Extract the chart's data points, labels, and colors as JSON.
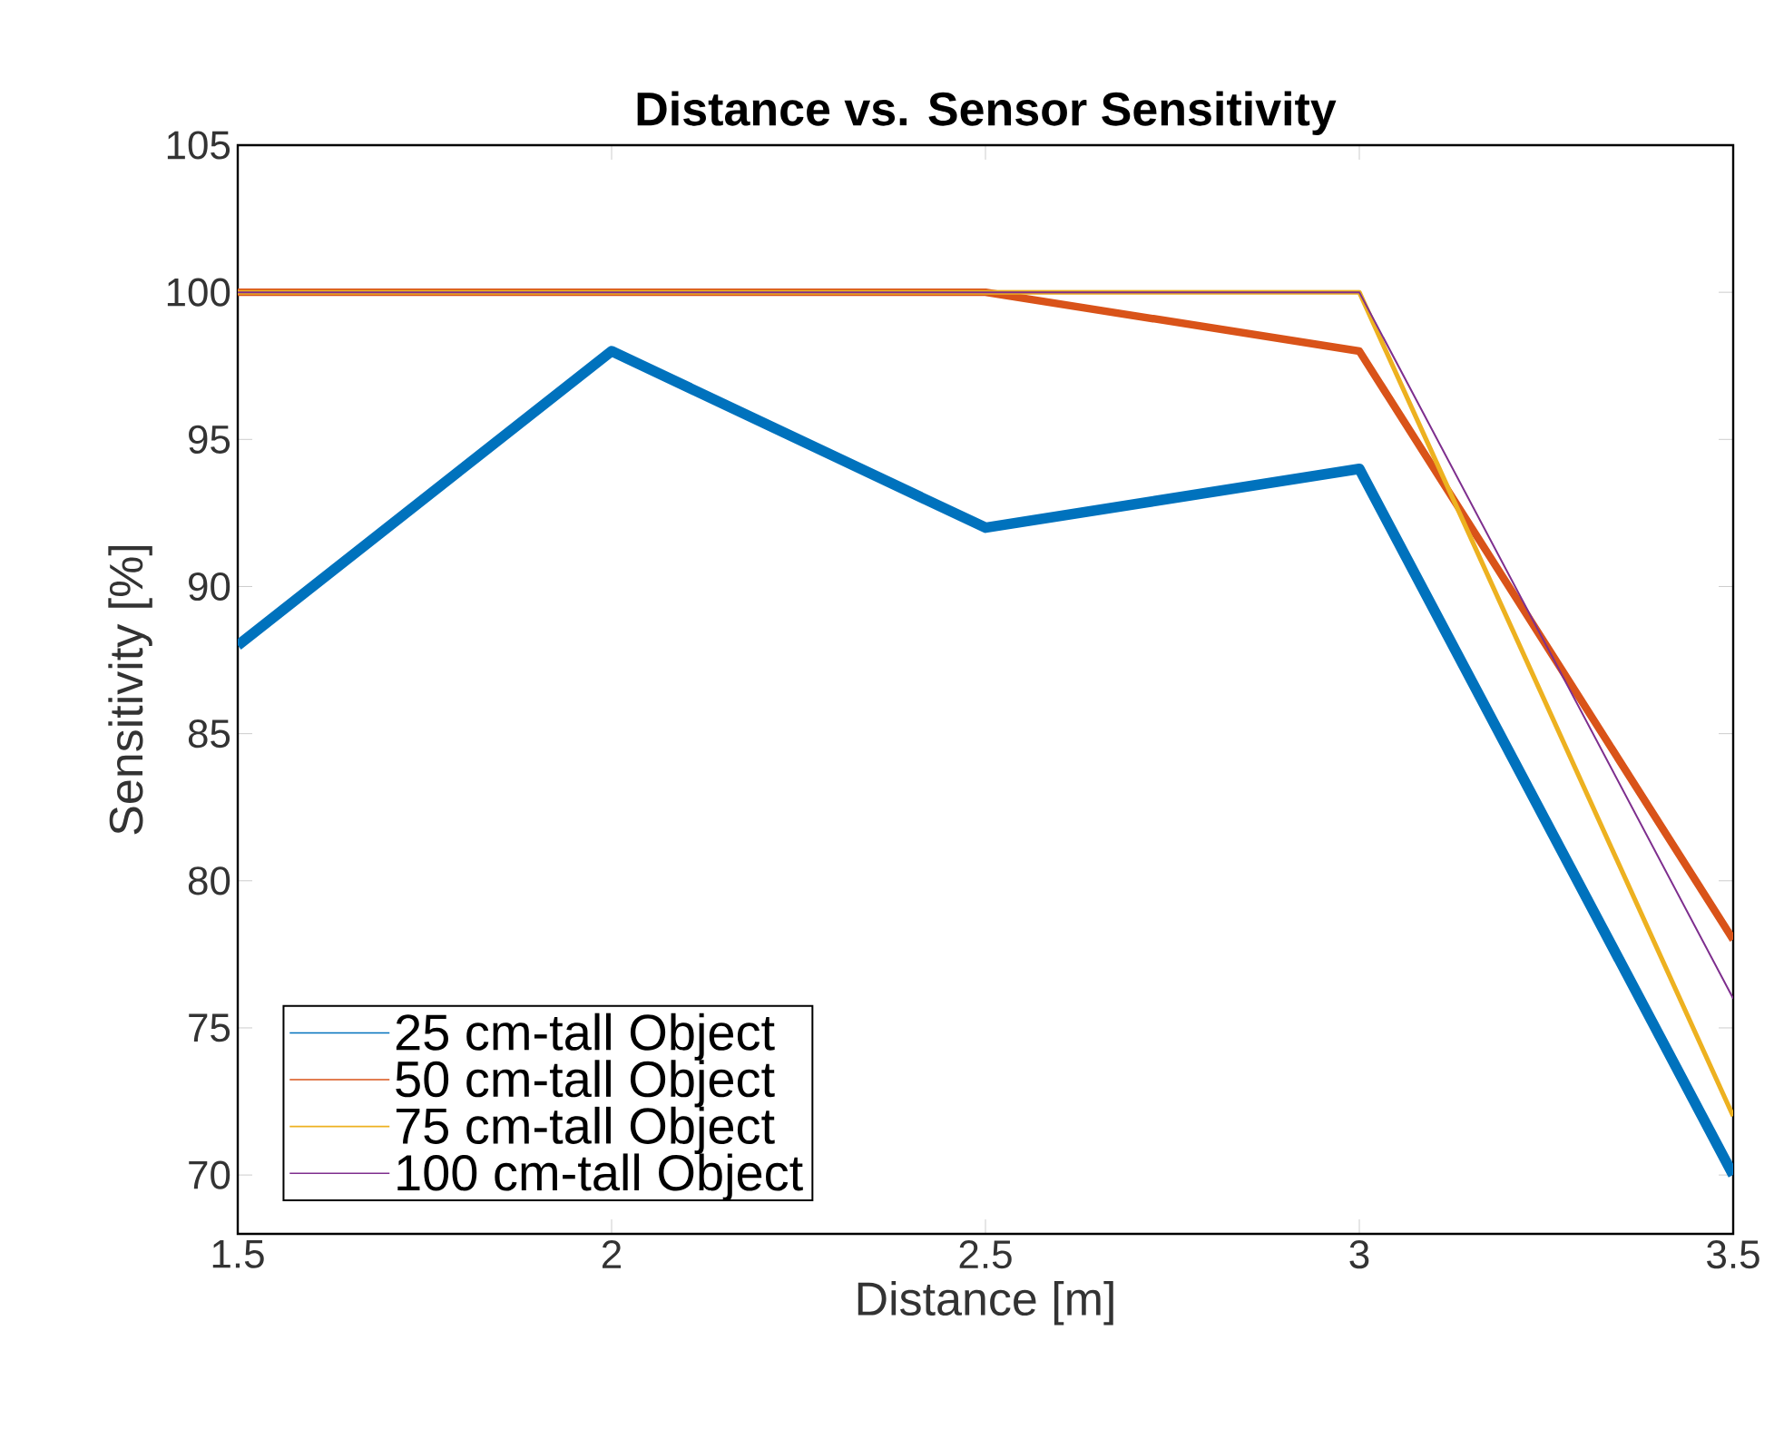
{
  "chart_data": {
    "type": "line",
    "title": "Distance vs. Sensor Sensitivity",
    "xlabel": "Distance [m]",
    "ylabel": "Sensitivity [%]",
    "x": [
      1.5,
      2,
      2.5,
      3,
      3.5
    ],
    "series": [
      {
        "name": "25 cm-tall Object",
        "color": "#0072bd",
        "values": [
          88,
          98,
          92,
          94,
          70
        ]
      },
      {
        "name": "50 cm-tall Object",
        "color": "#d95319",
        "values": [
          100,
          100,
          100,
          98,
          78
        ]
      },
      {
        "name": "75 cm-tall Object",
        "color": "#edb120",
        "values": [
          100,
          100,
          100,
          100,
          72
        ]
      },
      {
        "name": "100 cm-tall Object",
        "color": "#7e2f8e",
        "values": [
          100,
          100,
          100,
          100,
          76
        ]
      }
    ],
    "xlim": [
      1.5,
      3.5
    ],
    "ylim": [
      68,
      105
    ],
    "xticks": [
      1.5,
      2,
      2.5,
      3,
      3.5
    ],
    "yticks": [
      70,
      75,
      80,
      85,
      90,
      95,
      100,
      105
    ],
    "legend": "bottom left",
    "grid": false,
    "marker": "none",
    "line_style": "solid"
  }
}
